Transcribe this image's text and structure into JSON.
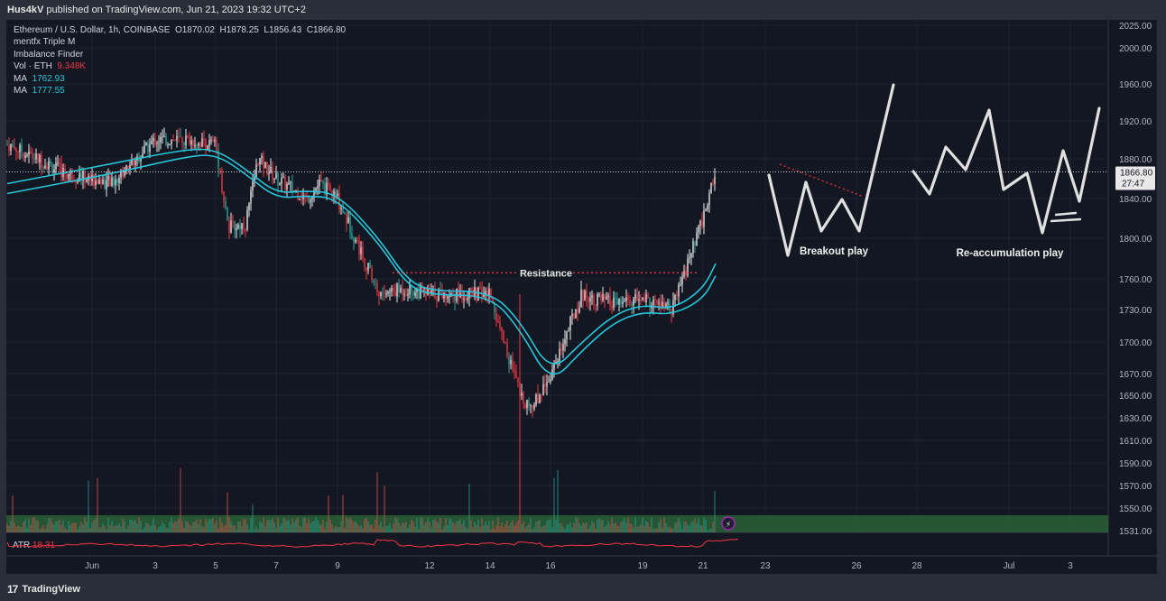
{
  "header": {
    "author": "Hus4kV",
    "published_text": " published on TradingView.com, Jun 21, 2023 19:32 UTC+2"
  },
  "legend": {
    "symbol": "Ethereum / U.S. Dollar, 1h, COINBASE",
    "open_label": "O",
    "open": "1870.02",
    "high_label": "H",
    "high": "1878.25",
    "low_label": "L",
    "low": "1856.43",
    "close_label": "C",
    "close": "1866.80",
    "indicator1": "mentfx Triple M",
    "indicator2": "Imbalance Finder",
    "vol_label": "Vol · ETH",
    "vol_value": "9.348K",
    "ma1_label": "MA",
    "ma1_value": "1762.93",
    "ma2_label": "MA",
    "ma2_value": "1777.55"
  },
  "footer": {
    "logo_text": "TradingView",
    "logo_icon": "tradingview-logo-icon"
  },
  "colors": {
    "background": "#131722",
    "up_candle": "#e8e8e8",
    "down_candle": "#f23645",
    "green_candle": "#26a69a",
    "ma_line": "#26c6da",
    "resistance": "#f23645",
    "drawing": "#e0e0e0",
    "volume_zone": "#2e6b3a",
    "atr_line": "#f23645"
  },
  "chart_data": {
    "type": "line",
    "title": "Ethereum / U.S. Dollar, 1h, COINBASE",
    "xlabel": "",
    "ylabel": "",
    "ylim": [
      1531,
      2025
    ],
    "grid": true,
    "price_ticks": [
      "2025.00",
      "2000.00",
      "1960.00",
      "1920.00",
      "1880.00",
      "1840.00",
      "1800.00",
      "1760.00",
      "1730.00",
      "1700.00",
      "1670.00",
      "1650.00",
      "1630.00",
      "1610.00",
      "1590.00",
      "1570.00",
      "1550.00",
      "1531.00"
    ],
    "current_price": "1866.80",
    "countdown": "27:47",
    "x_ticks": [
      "Jun",
      "3",
      "5",
      "7",
      "9",
      "12",
      "14",
      "16",
      "19",
      "21",
      "23",
      "26",
      "28",
      "Jul",
      "3"
    ],
    "price_path": [
      {
        "x": "May 31",
        "y": 1895
      },
      {
        "x": "Jun 1",
        "y": 1865
      },
      {
        "x": "Jun 2",
        "y": 1855
      },
      {
        "x": "Jun 3",
        "y": 1900
      },
      {
        "x": "Jun 4",
        "y": 1900
      },
      {
        "x": "Jun 5",
        "y": 1895
      },
      {
        "x": "Jun 5",
        "y": 1810
      },
      {
        "x": "Jun 6",
        "y": 1815
      },
      {
        "x": "Jun 6",
        "y": 1880
      },
      {
        "x": "Jun 7",
        "y": 1860
      },
      {
        "x": "Jun 8",
        "y": 1840
      },
      {
        "x": "Jun 8",
        "y": 1855
      },
      {
        "x": "Jun 9",
        "y": 1840
      },
      {
        "x": "Jun 10",
        "y": 1745
      },
      {
        "x": "Jun 11",
        "y": 1750
      },
      {
        "x": "Jun 12",
        "y": 1745
      },
      {
        "x": "Jun 13",
        "y": 1745
      },
      {
        "x": "Jun 14",
        "y": 1745
      },
      {
        "x": "Jun 15",
        "y": 1650
      },
      {
        "x": "Jun 15",
        "y": 1640
      },
      {
        "x": "Jun 16",
        "y": 1670
      },
      {
        "x": "Jun 17",
        "y": 1745
      },
      {
        "x": "Jun 18",
        "y": 1735
      },
      {
        "x": "Jun 19",
        "y": 1740
      },
      {
        "x": "Jun 20",
        "y": 1730
      },
      {
        "x": "Jun 21",
        "y": 1820
      },
      {
        "x": "Jun 21",
        "y": 1867
      }
    ],
    "ma_fast": [
      {
        "x": "May 31",
        "y": 1855
      },
      {
        "x": "Jun 2",
        "y": 1875
      },
      {
        "x": "Jun 4",
        "y": 1890
      },
      {
        "x": "Jun 5",
        "y": 1890
      },
      {
        "x": "Jun 6",
        "y": 1870
      },
      {
        "x": "Jun 7",
        "y": 1845
      },
      {
        "x": "Jun 8",
        "y": 1848
      },
      {
        "x": "Jun 9",
        "y": 1845
      },
      {
        "x": "Jun 10",
        "y": 1800
      },
      {
        "x": "Jun 11",
        "y": 1760
      },
      {
        "x": "Jun 12",
        "y": 1748
      },
      {
        "x": "Jun 14",
        "y": 1748
      },
      {
        "x": "Jun 15",
        "y": 1720
      },
      {
        "x": "Jun 16",
        "y": 1670
      },
      {
        "x": "Jun 17",
        "y": 1700
      },
      {
        "x": "Jun 18",
        "y": 1725
      },
      {
        "x": "Jun 19",
        "y": 1735
      },
      {
        "x": "Jun 20",
        "y": 1730
      },
      {
        "x": "Jun 21",
        "y": 1750
      },
      {
        "x": "Jun 21",
        "y": 1775
      }
    ],
    "ma_slow": [
      {
        "x": "May 31",
        "y": 1845
      },
      {
        "x": "Jun 2",
        "y": 1865
      },
      {
        "x": "Jun 4",
        "y": 1882
      },
      {
        "x": "Jun 5",
        "y": 1885
      },
      {
        "x": "Jun 6",
        "y": 1865
      },
      {
        "x": "Jun 7",
        "y": 1840
      },
      {
        "x": "Jun 8",
        "y": 1843
      },
      {
        "x": "Jun 9",
        "y": 1840
      },
      {
        "x": "Jun 10",
        "y": 1795
      },
      {
        "x": "Jun 11",
        "y": 1755
      },
      {
        "x": "Jun 12",
        "y": 1744
      },
      {
        "x": "Jun 14",
        "y": 1744
      },
      {
        "x": "Jun 15",
        "y": 1712
      },
      {
        "x": "Jun 16",
        "y": 1660
      },
      {
        "x": "Jun 17",
        "y": 1692
      },
      {
        "x": "Jun 18",
        "y": 1718
      },
      {
        "x": "Jun 19",
        "y": 1728
      },
      {
        "x": "Jun 20",
        "y": 1725
      },
      {
        "x": "Jun 21",
        "y": 1740
      },
      {
        "x": "Jun 21",
        "y": 1763
      }
    ],
    "resistance": {
      "label": "Resistance",
      "y": 1766,
      "x_start": "Jun 10",
      "x_end": "Jun 21"
    },
    "annotations": [
      "Breakout play",
      "Re-accumulation play"
    ],
    "atr": {
      "label": "ATR",
      "value": "18.31"
    }
  }
}
